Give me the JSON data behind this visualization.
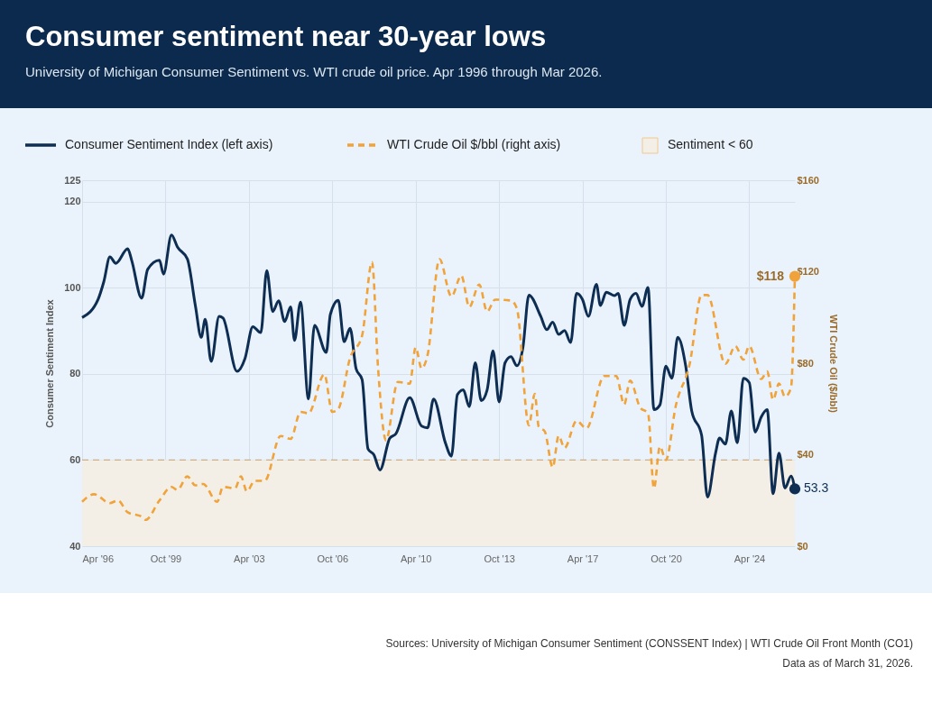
{
  "chart_data": {
    "type": "line",
    "title": "Consumer sentiment near 30-year lows",
    "subtitle": "University of Michigan Consumer Sentiment vs. WTI crude oil price. Apr 1996 through Mar 2026.",
    "ylabel": "Consumer Sentiment Index",
    "y2label": "WTI Crude Oil ($/bbl)",
    "xlim": [
      "1996-04",
      "2026-03"
    ],
    "xticks": [
      {
        "value": "1996-04",
        "label": "Apr '96"
      },
      {
        "value": "1999-10",
        "label": "Oct '99"
      },
      {
        "value": "2003-04",
        "label": "Apr '03"
      },
      {
        "value": "2006-10",
        "label": "Oct '06"
      },
      {
        "value": "2010-04",
        "label": "Apr '10"
      },
      {
        "value": "2013-10",
        "label": "Oct '13"
      },
      {
        "value": "2017-04",
        "label": "Apr '17"
      },
      {
        "value": "2020-10",
        "label": "Oct '20"
      },
      {
        "value": "2024-04",
        "label": "Apr '24"
      }
    ],
    "ylim": [
      40,
      125
    ],
    "yticks": [
      40,
      60,
      80,
      100,
      120,
      125
    ],
    "y2lim": [
      0,
      160
    ],
    "y2ticks": [
      {
        "value": 0,
        "label": "$0"
      },
      {
        "value": 40,
        "label": "$40"
      },
      {
        "value": 80,
        "label": "$80"
      },
      {
        "value": 120,
        "label": "$120"
      },
      {
        "value": 160,
        "label": "$160"
      }
    ],
    "grid": true,
    "legend": "top left",
    "series": [
      {
        "name": "Consumer Sentiment Index (left axis)",
        "color": "#0d2d52",
        "line_style": "solid",
        "x": [
          "1996-04",
          "1996-12",
          "1997-03",
          "1997-06",
          "1997-09",
          "1998-03",
          "1998-05",
          "1998-10",
          "1999-01",
          "1999-07",
          "1999-09",
          "2000-01",
          "2000-04",
          "2000-09",
          "2001-01",
          "2001-04",
          "2001-06",
          "2001-09",
          "2002-01",
          "2002-03",
          "2002-10",
          "2003-02",
          "2003-06",
          "2003-10",
          "2004-01",
          "2004-04",
          "2004-07",
          "2004-10",
          "2005-01",
          "2005-03",
          "2005-06",
          "2005-10",
          "2006-01",
          "2006-07",
          "2006-09",
          "2007-01",
          "2007-04",
          "2007-07",
          "2007-10",
          "2008-01",
          "2008-04",
          "2008-07",
          "2008-10",
          "2009-03",
          "2009-06",
          "2010-01",
          "2010-07",
          "2010-10",
          "2011-01",
          "2011-07",
          "2011-10",
          "2012-01",
          "2012-04",
          "2012-07",
          "2012-10",
          "2013-01",
          "2013-04",
          "2013-07",
          "2013-10",
          "2014-01",
          "2014-04",
          "2014-07",
          "2014-10",
          "2015-01",
          "2015-07",
          "2015-10",
          "2016-01",
          "2016-04",
          "2016-07",
          "2016-10",
          "2017-01",
          "2017-04",
          "2017-07",
          "2017-11",
          "2018-01",
          "2018-04",
          "2018-08",
          "2018-10",
          "2019-01",
          "2019-04",
          "2019-07",
          "2019-10",
          "2020-01",
          "2020-04",
          "2020-07",
          "2020-10",
          "2021-01",
          "2021-04",
          "2021-08",
          "2021-11",
          "2022-04",
          "2022-07",
          "2022-11",
          "2023-01",
          "2023-04",
          "2023-07",
          "2023-10",
          "2024-01",
          "2024-04",
          "2024-07",
          "2024-10",
          "2025-01",
          "2025-04",
          "2025-07",
          "2025-10",
          "2026-01",
          "2026-03"
        ],
        "values": [
          93.1,
          97.3,
          101.5,
          107.2,
          105.7,
          109.1,
          106.4,
          97.6,
          104.3,
          106.4,
          103.2,
          112.3,
          109.5,
          106.7,
          95.9,
          88.5,
          92.7,
          82.9,
          93.4,
          93.0,
          80.6,
          83.6,
          91.0,
          89.6,
          104.0,
          94.5,
          97.0,
          92.2,
          95.6,
          87.8,
          96.7,
          74.2,
          91.3,
          85.0,
          93.8,
          97.1,
          87.5,
          90.6,
          81.2,
          78.7,
          62.6,
          61.2,
          57.7,
          65.1,
          66.1,
          74.5,
          67.9,
          67.5,
          74.2,
          64.0,
          60.9,
          75.2,
          76.3,
          72.4,
          82.6,
          73.8,
          76.3,
          85.4,
          73.5,
          82.6,
          84.0,
          81.9,
          86.1,
          98.3,
          93.4,
          90.3,
          92.0,
          89.2,
          90.1,
          87.3,
          98.7,
          97.3,
          93.4,
          100.8,
          95.9,
          99.0,
          98.2,
          98.7,
          91.3,
          97.3,
          98.7,
          95.7,
          100.1,
          71.7,
          72.8,
          81.8,
          79.0,
          88.5,
          81.8,
          71.4,
          65.8,
          51.4,
          61.6,
          65.1,
          63.7,
          71.4,
          64.0,
          79.0,
          78.0,
          66.5,
          70.0,
          71.7,
          52.2,
          61.6,
          53.5,
          56.3,
          53.3
        ],
        "value_labels": [
          null,
          null,
          null,
          null,
          null,
          null,
          null,
          null,
          null,
          null,
          null,
          null,
          null,
          null,
          null,
          null,
          null,
          null,
          null,
          null,
          null,
          null,
          null,
          null,
          null,
          null,
          null,
          null,
          null,
          null,
          null,
          null,
          null,
          null,
          null,
          null,
          null,
          null,
          null,
          null,
          null,
          null,
          null,
          null,
          null,
          null,
          null,
          null,
          null,
          null,
          null,
          null,
          null,
          null,
          null,
          null,
          null,
          null,
          null,
          null,
          null,
          null,
          null,
          null,
          null,
          null,
          null,
          null,
          null,
          null,
          null,
          null,
          null,
          null,
          null,
          null,
          null,
          null,
          null,
          null,
          null,
          null,
          null,
          null,
          null,
          null,
          null,
          null,
          null,
          null,
          null,
          null,
          null,
          null,
          null,
          null,
          null,
          null,
          null,
          null,
          null,
          null,
          null,
          null,
          null,
          null,
          "53.3"
        ]
      },
      {
        "name": "WTI Crude Oil $/bbl (right axis)",
        "color": "#f0a33a",
        "axis": "y2",
        "line_style": "dashed",
        "x": [
          "1996-04",
          "1996-10",
          "1997-06",
          "1997-10",
          "1998-03",
          "1998-10",
          "1998-12",
          "1999-07",
          "2000-01",
          "2000-04",
          "2000-09",
          "2001-01",
          "2001-05",
          "2001-12",
          "2002-03",
          "2002-09",
          "2002-12",
          "2003-03",
          "2003-07",
          "2003-12",
          "2004-08",
          "2005-01",
          "2005-06",
          "2005-10",
          "2006-06",
          "2006-10",
          "2007-01",
          "2007-07",
          "2008-01",
          "2008-06",
          "2008-09",
          "2009-01",
          "2009-07",
          "2010-01",
          "2010-04",
          "2010-07",
          "2010-10",
          "2011-04",
          "2011-10",
          "2012-03",
          "2012-07",
          "2012-12",
          "2013-04",
          "2013-08",
          "2014-04",
          "2014-07",
          "2015-01",
          "2015-04",
          "2015-06",
          "2015-09",
          "2016-01",
          "2016-04",
          "2016-07",
          "2017-01",
          "2017-06",
          "2018-03",
          "2018-09",
          "2019-01",
          "2019-04",
          "2019-09",
          "2020-01",
          "2020-04",
          "2020-07",
          "2020-10",
          "2021-03",
          "2021-10",
          "2022-04",
          "2022-07",
          "2023-04",
          "2023-09",
          "2024-01",
          "2024-04",
          "2024-10",
          "2025-01",
          "2025-04",
          "2025-07",
          "2025-10",
          "2026-01",
          "2026-03"
        ],
        "values": [
          19.4,
          22.7,
          18.8,
          20.0,
          14.8,
          12.9,
          11.5,
          20.0,
          25.9,
          24.6,
          30.5,
          26.6,
          27.2,
          19.4,
          25.9,
          25.3,
          30.5,
          24.0,
          28.6,
          28.6,
          48.2,
          46.9,
          58.7,
          58.1,
          75.1,
          58.7,
          60.0,
          82.3,
          92.1,
          124.2,
          78.3,
          46.3,
          71.8,
          71.1,
          86.9,
          77.7,
          83.6,
          125.5,
          109.2,
          118.3,
          104.6,
          114.4,
          102.6,
          107.8,
          107.4,
          103.9,
          52.8,
          66.6,
          52.2,
          50.2,
          34.5,
          48.2,
          43.0,
          54.8,
          51.5,
          74.4,
          74.4,
          62.0,
          72.4,
          60.7,
          58.1,
          25.3,
          43.6,
          37.7,
          61.3,
          79.7,
          109.8,
          109.8,
          79.7,
          87.5,
          81.6,
          87.5,
          73.1,
          76.4,
          64.0,
          71.1,
          65.3,
          69.2,
          118.0
        ],
        "value_labels": [
          null,
          null,
          null,
          null,
          null,
          null,
          null,
          null,
          null,
          null,
          null,
          null,
          null,
          null,
          null,
          null,
          null,
          null,
          null,
          null,
          null,
          null,
          null,
          null,
          null,
          null,
          null,
          null,
          null,
          null,
          null,
          null,
          null,
          null,
          null,
          null,
          null,
          null,
          null,
          null,
          null,
          null,
          null,
          null,
          null,
          null,
          null,
          null,
          null,
          null,
          null,
          null,
          null,
          null,
          null,
          null,
          null,
          null,
          null,
          null,
          null,
          null,
          null,
          null,
          null,
          null,
          null,
          null,
          null,
          null,
          null,
          null,
          null,
          null,
          null,
          null,
          null,
          null,
          "$118"
        ]
      }
    ],
    "bands": [
      {
        "axis": "y",
        "from": 40,
        "to": 60,
        "label": "Sentiment < 60",
        "color": "#f4efe6"
      }
    ],
    "ref_lines": [
      {
        "axis": "y",
        "value": 60,
        "color": "#cfae86",
        "line_style": "dashed"
      }
    ],
    "annotations": [
      "Sources: University of Michigan Consumer Sentiment (CONSSENT Index)  |  WTI Crude Oil Front Month (CO1)",
      "Data as of March 31, 2026."
    ]
  }
}
